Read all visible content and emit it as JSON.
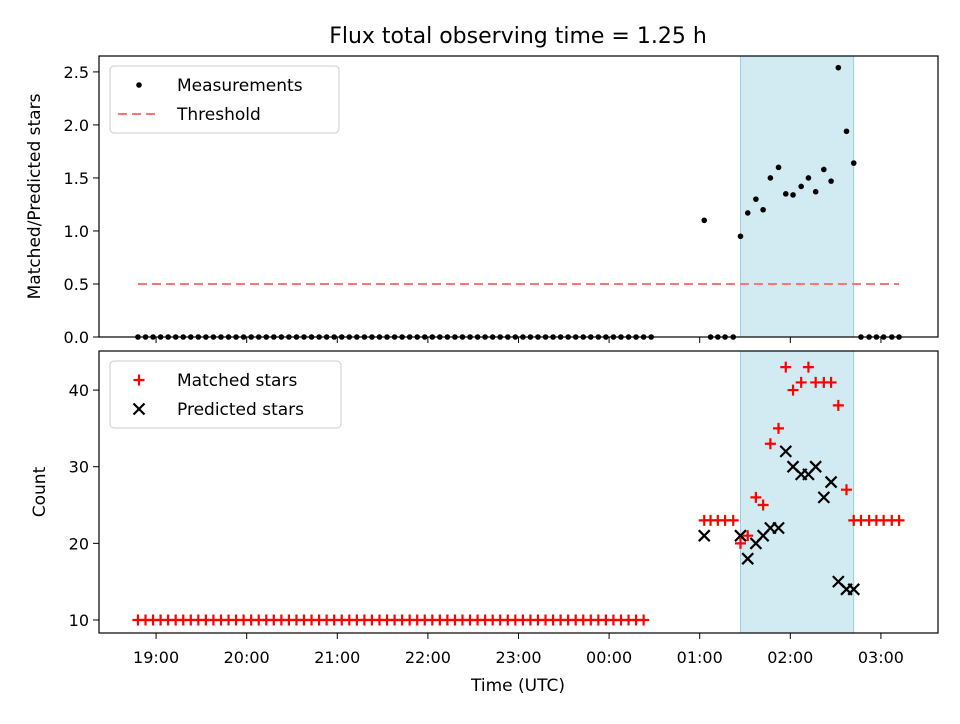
{
  "chart_data": {
    "title": "Flux total observing time = 1.25 h",
    "x_axis": {
      "label": "Time (UTC)",
      "ticks": [
        "19:00",
        "20:00",
        "21:00",
        "22:00",
        "23:00",
        "00:00",
        "01:00",
        "02:00",
        "03:00"
      ],
      "tick_hours": [
        19,
        20,
        21,
        22,
        23,
        24,
        25,
        26,
        27
      ],
      "range_hours": [
        18.37,
        27.63
      ]
    },
    "highlight_span_hours": [
      25.45,
      26.7
    ],
    "highlight_color": "#add8e6",
    "panels": [
      {
        "type": "scatter",
        "ylabel": "Matched/Predicted stars",
        "ylim": [
          0,
          2.65
        ],
        "yticks": [
          "0.0",
          "0.5",
          "1.0",
          "1.5",
          "2.0",
          "2.5"
        ],
        "ytick_values": [
          0,
          0.5,
          1.0,
          1.5,
          2.0,
          2.5
        ],
        "legend": {
          "location": "upper-left",
          "entries": [
            "Measurements",
            "Threshold"
          ]
        },
        "series": [
          {
            "name": "Measurements",
            "marker": "dot",
            "color": "#000000",
            "zero_run": {
              "start": 18.8,
              "step": 0.0833,
              "count": 69,
              "value": 0
            },
            "points": [
              [
                25.05,
                1.1
              ],
              [
                25.12,
                0
              ],
              [
                25.2,
                0
              ],
              [
                25.28,
                0
              ],
              [
                25.37,
                0
              ],
              [
                25.45,
                0.95
              ],
              [
                25.53,
                1.17
              ],
              [
                25.62,
                1.3
              ],
              [
                25.7,
                1.2
              ],
              [
                25.78,
                1.5
              ],
              [
                25.87,
                1.6
              ],
              [
                25.95,
                1.35
              ],
              [
                26.03,
                1.34
              ],
              [
                26.12,
                1.42
              ],
              [
                26.2,
                1.5
              ],
              [
                26.28,
                1.37
              ],
              [
                26.37,
                1.58
              ],
              [
                26.45,
                1.47
              ],
              [
                26.53,
                2.54
              ],
              [
                26.62,
                1.94
              ],
              [
                26.7,
                1.64
              ],
              [
                26.78,
                0
              ],
              [
                26.87,
                0
              ],
              [
                26.95,
                0
              ],
              [
                27.03,
                0
              ],
              [
                27.12,
                0
              ],
              [
                27.2,
                0
              ]
            ]
          },
          {
            "name": "Threshold",
            "style": "dashed",
            "color": "#ff7373",
            "x_range": [
              18.8,
              27.2
            ],
            "value": 0.5
          }
        ]
      },
      {
        "type": "scatter",
        "ylabel": "Count",
        "ylim": [
          8.3,
          45.1
        ],
        "yticks": [
          "10",
          "20",
          "30",
          "40"
        ],
        "ytick_values": [
          10,
          20,
          30,
          40
        ],
        "legend": {
          "location": "upper-left",
          "entries": [
            "Matched stars",
            "Predicted stars"
          ]
        },
        "series": [
          {
            "name": "Matched stars",
            "marker": "plus",
            "color": "#ff0000",
            "run": {
              "start": 18.8,
              "step": 0.0833,
              "count": 68,
              "value": 10
            },
            "points": [
              [
                25.05,
                23
              ],
              [
                25.12,
                23
              ],
              [
                25.2,
                23
              ],
              [
                25.28,
                23
              ],
              [
                25.37,
                23
              ],
              [
                25.45,
                20
              ],
              [
                25.53,
                21
              ],
              [
                25.62,
                26
              ],
              [
                25.7,
                25
              ],
              [
                25.78,
                33
              ],
              [
                25.87,
                35
              ],
              [
                25.95,
                43
              ],
              [
                26.03,
                40
              ],
              [
                26.12,
                41
              ],
              [
                26.2,
                43
              ],
              [
                26.28,
                41
              ],
              [
                26.37,
                41
              ],
              [
                26.45,
                41
              ],
              [
                26.53,
                38
              ],
              [
                26.62,
                27
              ],
              [
                26.7,
                23
              ],
              [
                26.78,
                23
              ],
              [
                26.87,
                23
              ],
              [
                26.95,
                23
              ],
              [
                27.03,
                23
              ],
              [
                27.12,
                23
              ],
              [
                27.2,
                23
              ]
            ]
          },
          {
            "name": "Predicted stars",
            "marker": "x",
            "color": "#000000",
            "points": [
              [
                25.05,
                21
              ],
              [
                25.45,
                21
              ],
              [
                25.53,
                18
              ],
              [
                25.62,
                20
              ],
              [
                25.7,
                21
              ],
              [
                25.78,
                22
              ],
              [
                25.87,
                22
              ],
              [
                25.95,
                32
              ],
              [
                26.03,
                30
              ],
              [
                26.12,
                29
              ],
              [
                26.2,
                29
              ],
              [
                26.28,
                30
              ],
              [
                26.37,
                26
              ],
              [
                26.45,
                28
              ],
              [
                26.53,
                15
              ],
              [
                26.62,
                14
              ],
              [
                26.7,
                14
              ]
            ]
          }
        ]
      }
    ]
  }
}
